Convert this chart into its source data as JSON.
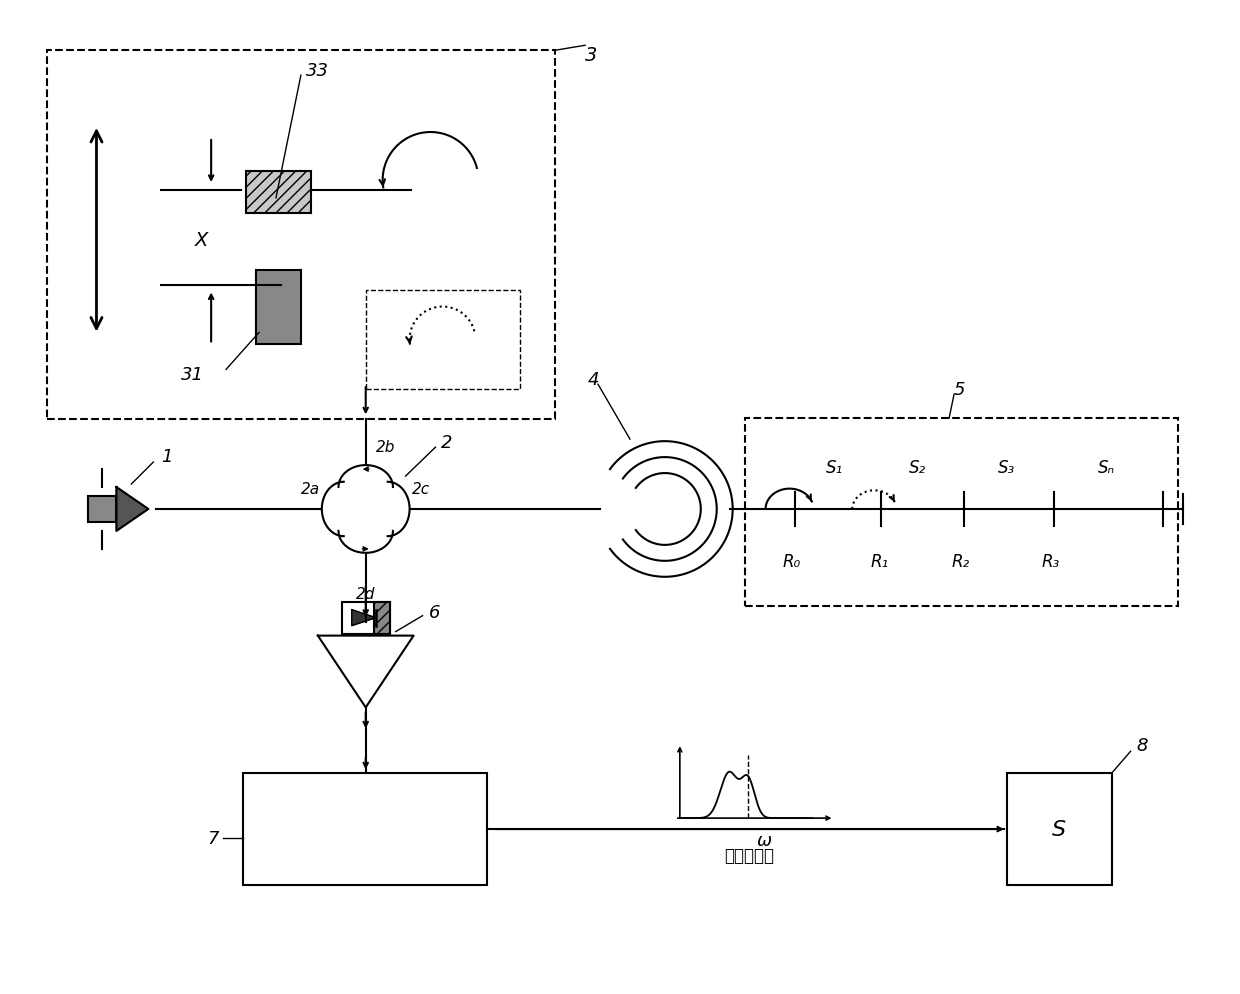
{
  "bg_color": "#ffffff",
  "line_color": "#000000",
  "fig_width": 12.4,
  "fig_height": 9.95,
  "labels": {
    "label_1": "1",
    "label_2": "2",
    "label_2a": "2a",
    "label_2b": "2b",
    "label_2c": "2c",
    "label_2d": "2d",
    "label_3": "3",
    "label_4": "4",
    "label_5": "5",
    "label_6": "6",
    "label_7": "7",
    "label_8": "8",
    "label_31": "31",
    "label_33": "33",
    "label_X": "X",
    "label_S1": "S₁",
    "label_S2": "S₂",
    "label_S3": "S₃",
    "label_Sn": "Sₙ",
    "label_R0": "R₀",
    "label_R1": "R₁",
    "label_R2": "R₂",
    "label_R3": "R₃",
    "label_omega": "ω",
    "label_bandpass": "带通滤波器",
    "label_S_box": "S"
  }
}
